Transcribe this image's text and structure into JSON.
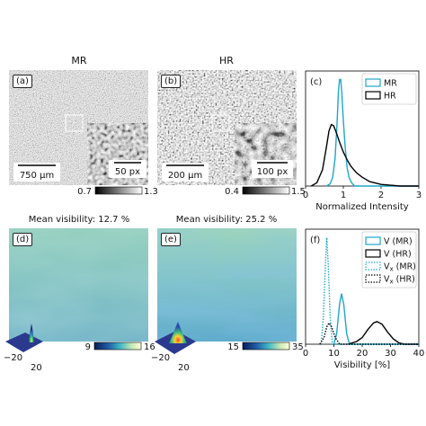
{
  "figure": {
    "top_titles": [
      "MR",
      "HR"
    ],
    "panels": {
      "a": {
        "label": "(a)",
        "scalebar": "750 µm",
        "inset_scalebar": "50 px",
        "cbar_min": "0.7",
        "cbar_max": "1.3"
      },
      "b": {
        "label": "(b)",
        "scalebar": "200 µm",
        "inset_scalebar": "100 px",
        "cbar_min": "0.4",
        "cbar_max": "1.5"
      },
      "d": {
        "label": "(d)",
        "title": "Mean visibility: 12.7 %",
        "cbar_min": "9",
        "cbar_max": "16",
        "axis_left": "−20",
        "axis_bottom": "20"
      },
      "e": {
        "label": "(e)",
        "title": "Mean visibility: 25.2 %",
        "cbar_min": "15",
        "cbar_max": "35",
        "axis_left": "−20",
        "axis_bottom": "20"
      }
    }
  },
  "chart_data": [
    {
      "type": "line",
      "panel": "(c)",
      "xlabel": "Normalized Intensity",
      "ylabel": "",
      "xlim": [
        0,
        3
      ],
      "xticks": [
        "0",
        "1",
        "2",
        "3"
      ],
      "legend_position": "top-right",
      "series": [
        {
          "name": "MR",
          "color": "#1fa7c9",
          "dash": "solid",
          "points": [
            [
              0.55,
              0.0
            ],
            [
              0.65,
              0.02
            ],
            [
              0.72,
              0.08
            ],
            [
              0.78,
              0.25
            ],
            [
              0.83,
              0.55
            ],
            [
              0.87,
              0.85
            ],
            [
              0.9,
              0.97
            ],
            [
              0.93,
              0.97
            ],
            [
              0.96,
              0.85
            ],
            [
              1.0,
              0.6
            ],
            [
              1.05,
              0.35
            ],
            [
              1.1,
              0.17
            ],
            [
              1.15,
              0.08
            ],
            [
              1.22,
              0.03
            ],
            [
              1.3,
              0.0
            ],
            [
              3.0,
              0.0
            ]
          ]
        },
        {
          "name": "HR",
          "color": "#000000",
          "dash": "solid",
          "points": [
            [
              0.15,
              0.0
            ],
            [
              0.3,
              0.03
            ],
            [
              0.45,
              0.15
            ],
            [
              0.55,
              0.35
            ],
            [
              0.62,
              0.5
            ],
            [
              0.68,
              0.56
            ],
            [
              0.74,
              0.55
            ],
            [
              0.8,
              0.5
            ],
            [
              0.9,
              0.4
            ],
            [
              1.0,
              0.31
            ],
            [
              1.1,
              0.24
            ],
            [
              1.2,
              0.18
            ],
            [
              1.35,
              0.12
            ],
            [
              1.5,
              0.08
            ],
            [
              1.7,
              0.04
            ],
            [
              2.0,
              0.015
            ],
            [
              2.5,
              0.0
            ],
            [
              3.0,
              0.0
            ]
          ]
        }
      ]
    },
    {
      "type": "line",
      "panel": "(f)",
      "xlabel": "Visibility [%]",
      "ylabel": "",
      "xlim": [
        0,
        40
      ],
      "xticks": [
        "0",
        "10",
        "20",
        "30",
        "40"
      ],
      "legend_position": "top-right",
      "series": [
        {
          "name": "V (MR)",
          "color": "#1fa7c9",
          "dash": "solid",
          "points": [
            [
              10,
              0.0
            ],
            [
              11,
              0.08
            ],
            [
              12,
              0.3
            ],
            [
              12.7,
              0.38
            ],
            [
              13.5,
              0.3
            ],
            [
              14.5,
              0.08
            ],
            [
              15.5,
              0.0
            ],
            [
              40,
              0.0
            ]
          ]
        },
        {
          "name": "V (HR)",
          "color": "#000000",
          "dash": "solid",
          "points": [
            [
              15,
              0.0
            ],
            [
              18,
              0.02
            ],
            [
              20,
              0.05
            ],
            [
              22,
              0.11
            ],
            [
              24,
              0.16
            ],
            [
              25.2,
              0.17
            ],
            [
              27,
              0.15
            ],
            [
              29,
              0.09
            ],
            [
              31,
              0.04
            ],
            [
              33,
              0.01
            ],
            [
              35,
              0.0
            ],
            [
              40,
              0.0
            ]
          ]
        },
        {
          "name": "V_x (MR)",
          "color": "#1fa7c9",
          "dash": "dotted",
          "points": [
            [
              5.5,
              0.0
            ],
            [
              6.3,
              0.2
            ],
            [
              7,
              0.6
            ],
            [
              7.5,
              0.8
            ],
            [
              8,
              0.6
            ],
            [
              8.7,
              0.2
            ],
            [
              9.5,
              0.0
            ],
            [
              40,
              0.0
            ]
          ]
        },
        {
          "name": "V_x (HR)",
          "color": "#000000",
          "dash": "dotted",
          "points": [
            [
              5,
              0.0
            ],
            [
              6.5,
              0.05
            ],
            [
              7.5,
              0.13
            ],
            [
              8.3,
              0.16
            ],
            [
              9.2,
              0.13
            ],
            [
              10.5,
              0.05
            ],
            [
              12,
              0.0
            ],
            [
              40,
              0.0
            ]
          ]
        }
      ]
    }
  ]
}
